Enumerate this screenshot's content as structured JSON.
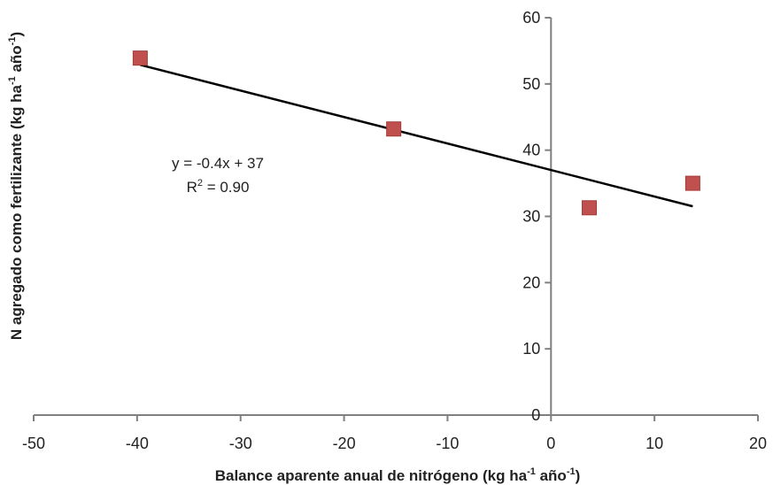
{
  "chart_data": {
    "type": "scatter",
    "title": "",
    "xlabel": "Balance aparente anual de nitrógeno (kg ha",
    "xlabel_mid": " año",
    "xlabel_end": ")",
    "xlabel_sup": "-1",
    "ylabel": "N agregado como fertilizante (kg ha",
    "ylabel_mid": " año",
    "ylabel_end": ")",
    "ylabel_sup": "-1",
    "xlim": [
      -50,
      20
    ],
    "ylim": [
      0,
      60
    ],
    "x_ticks": [
      -50,
      -40,
      -30,
      -20,
      -10,
      0,
      10,
      20
    ],
    "y_ticks": [
      0,
      10,
      20,
      30,
      40,
      50,
      60
    ],
    "grid": false,
    "legend": "none",
    "series": [
      {
        "marker": "square",
        "color": "#c0504d",
        "points": [
          {
            "x": -39.7,
            "y": 53.9
          },
          {
            "x": -15.2,
            "y": 43.2
          },
          {
            "x": 3.7,
            "y": 31.3
          },
          {
            "x": 13.7,
            "y": 35.0
          }
        ]
      }
    ],
    "trendline": {
      "color": "#000000",
      "x_range": [
        -39.7,
        13.7
      ],
      "slope": -0.4,
      "intercept": 37,
      "equation": "y = -0.4x + 37",
      "r2_prefix": "R",
      "r2_sup": "2",
      "r2_value": " = 0.90"
    }
  }
}
